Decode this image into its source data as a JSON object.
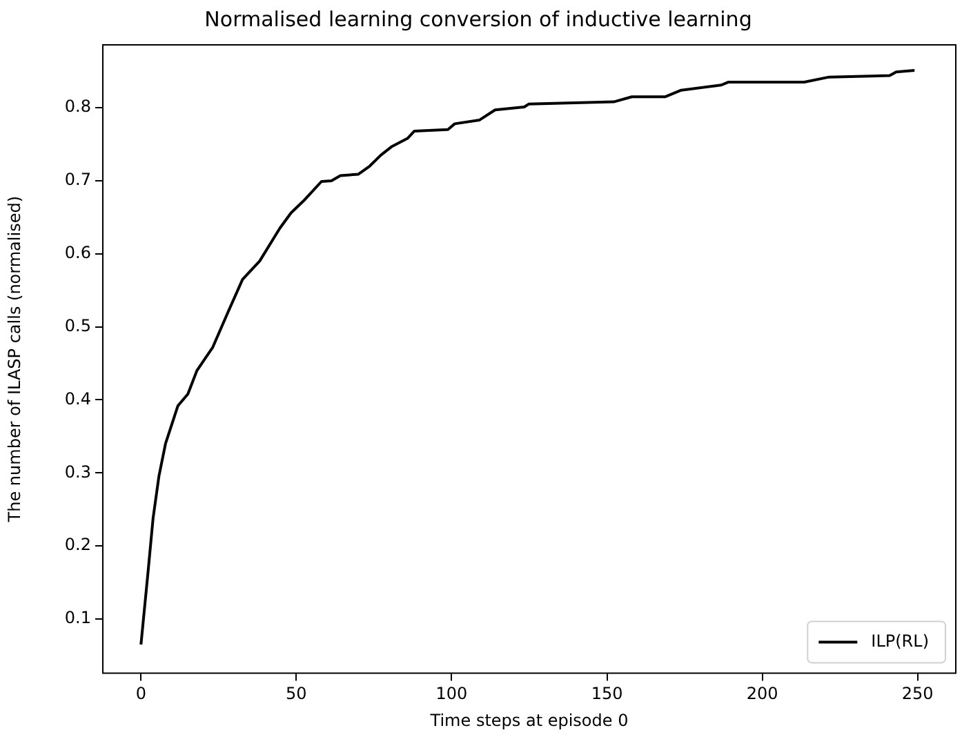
{
  "chart_data": {
    "type": "line",
    "title": "Normalised learning conversion of inductive learning",
    "xlabel": "Time steps at episode 0",
    "ylabel": "The number of ILASP calls (normalised)",
    "x": [
      0,
      2.2,
      3.9,
      5.8,
      7.9,
      11.9,
      15.1,
      18,
      23.1,
      28,
      32.7,
      38.2,
      44.7,
      48.3,
      52.7,
      58.1,
      61.3,
      64.2,
      70,
      73.6,
      77.2,
      80.8,
      85.8,
      88,
      98.8,
      101,
      108.9,
      114,
      123.4,
      124.8,
      152.2,
      158,
      168.8,
      173.9,
      186.8,
      189,
      213.5,
      221.5,
      241,
      243.1,
      249
    ],
    "series": [
      {
        "name": "ILP(RL)",
        "color": "#000000",
        "values": [
          0.065,
          0.161,
          0.238,
          0.296,
          0.34,
          0.392,
          0.408,
          0.44,
          0.472,
          0.52,
          0.565,
          0.59,
          0.635,
          0.656,
          0.674,
          0.699,
          0.7,
          0.707,
          0.709,
          0.72,
          0.735,
          0.747,
          0.758,
          0.768,
          0.77,
          0.778,
          0.783,
          0.797,
          0.801,
          0.805,
          0.808,
          0.815,
          0.815,
          0.824,
          0.831,
          0.835,
          0.835,
          0.842,
          0.844,
          0.849,
          0.851
        ]
      }
    ],
    "xlim": [
      -12.5,
      262.5
    ],
    "ylim": [
      0.025,
      0.887
    ],
    "xticks": [
      0,
      50,
      100,
      150,
      200,
      250
    ],
    "yticks": [
      0.1,
      0.2,
      0.3,
      0.4,
      0.5,
      0.6,
      0.7,
      0.8
    ],
    "grid": false,
    "legend": "bottom right",
    "marker": "none",
    "line_style": "solid"
  }
}
